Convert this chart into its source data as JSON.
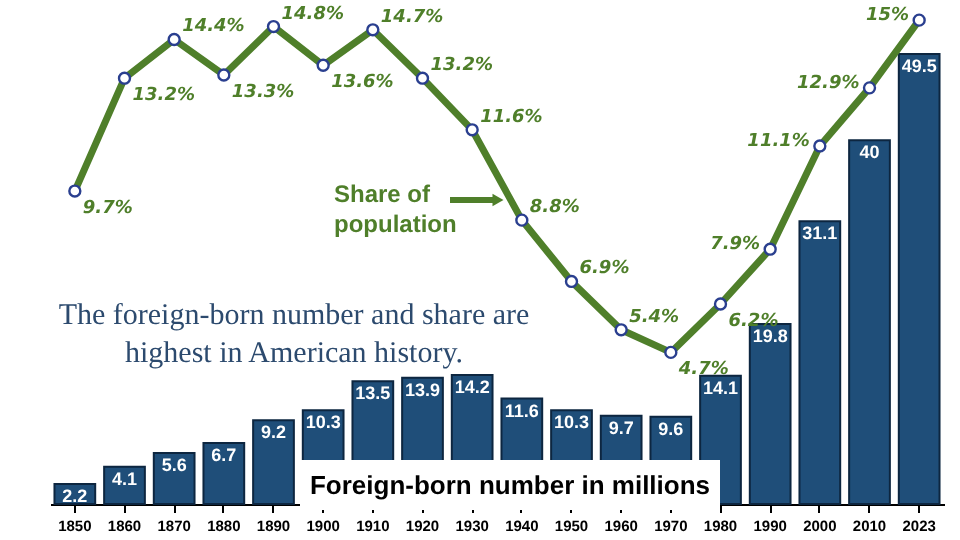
{
  "chart_data": {
    "type": "bar",
    "categories": [
      "1850",
      "1860",
      "1870",
      "1880",
      "1890",
      "1900",
      "1910",
      "1920",
      "1930",
      "1940",
      "1950",
      "1960",
      "1970",
      "1980",
      "1990",
      "2000",
      "2010",
      "2023"
    ],
    "series": [
      {
        "name": "Foreign-born number in millions",
        "color": "#1f4e79",
        "values": [
          2.2,
          4.1,
          5.6,
          6.7,
          9.2,
          10.3,
          13.5,
          13.9,
          14.2,
          11.6,
          10.3,
          9.7,
          9.6,
          14.1,
          19.8,
          31.1,
          40,
          49.5
        ]
      },
      {
        "name": "Share of population",
        "type": "line",
        "axis": "y2",
        "color": "#4f7f2a",
        "values": [
          9.7,
          13.2,
          14.4,
          13.3,
          14.8,
          13.6,
          14.7,
          13.2,
          11.6,
          8.8,
          6.9,
          5.4,
          4.7,
          6.2,
          7.9,
          11.1,
          12.9,
          15
        ],
        "value_labels": [
          "9.7%",
          "13.2%",
          "14.4%",
          "13.3%",
          "14.8%",
          "13.6%",
          "14.7%",
          "13.2%",
          "11.6%",
          "8.8%",
          "6.9%",
          "5.4%",
          "4.7%",
          "6.2%",
          "7.9%",
          "11.1%",
          "12.9%",
          "15%"
        ]
      }
    ],
    "ylim": [
      0,
      55
    ],
    "y2lim": [
      0,
      15.5
    ],
    "data_labels": true,
    "marker": "circle",
    "line_style": "solid",
    "grid": false,
    "legend": "center",
    "tick_labels": "x",
    "annotations": [
      "The foreign-born number and share are highest in American history."
    ]
  }
}
